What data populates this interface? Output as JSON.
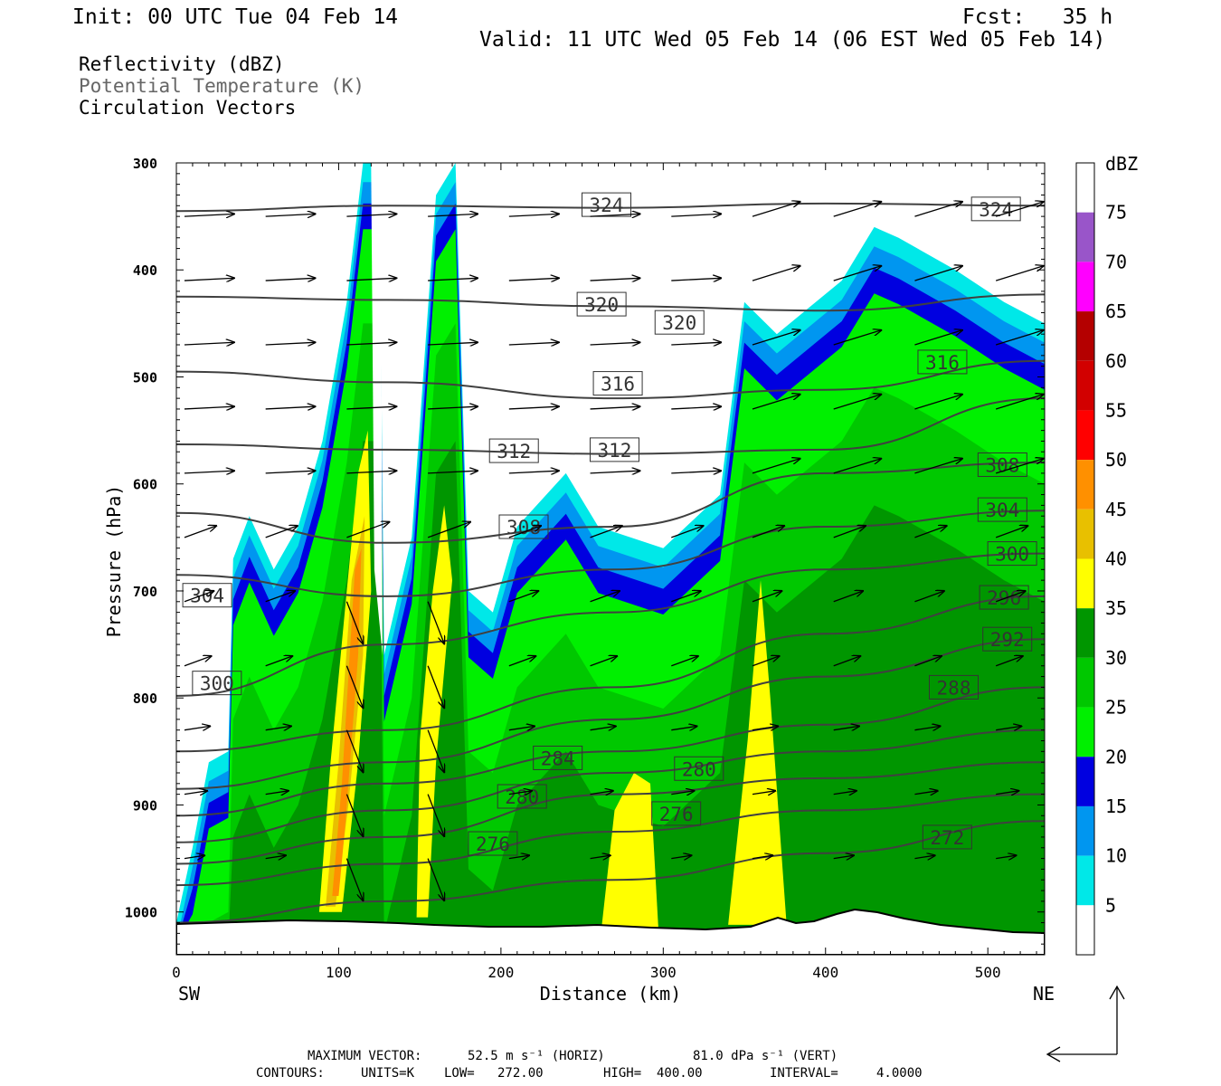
{
  "header": {
    "init": "Init: 00 UTC Tue 04 Feb 14",
    "fcst": "Fcst:   35 h",
    "valid": "Valid: 11 UTC Wed 05 Feb 14 (06 EST Wed 05 Feb 14)",
    "field1": "Reflectivity (dBZ)",
    "field2": "Potential Temperature (K)",
    "field3": "Circulation Vectors"
  },
  "footer": {
    "max_vector_label": "MAXIMUM VECTOR:",
    "horiz": "52.5 m s⁻¹ (HORIZ)",
    "vert": "81.0 dPa s⁻¹ (VERT)",
    "contours_label": "CONTOURS:",
    "units": "UNITS=K",
    "low": "LOW=   272.00",
    "high": "HIGH=  400.00",
    "interval": "INTERVAL=     4.0000"
  },
  "chart_data": {
    "type": "heatmap",
    "xlabel": "Distance (km)",
    "ylabel": "Pressure (hPa)",
    "x_end_labels": [
      "SW",
      "NE"
    ],
    "xlim": [
      0,
      535
    ],
    "ylim": [
      1040,
      300
    ],
    "xticks": [
      0,
      100,
      200,
      300,
      400,
      500
    ],
    "yticks": [
      300,
      400,
      500,
      600,
      700,
      800,
      900,
      1000
    ],
    "colorbar": {
      "title": "dBZ",
      "levels": [
        5,
        10,
        15,
        20,
        25,
        30,
        35,
        40,
        45,
        50,
        55,
        60,
        65,
        70,
        75
      ],
      "colors": [
        "#ffffff",
        "#00e8e8",
        "#0096f0",
        "#0000e0",
        "#00f000",
        "#00c800",
        "#009600",
        "#ffff00",
        "#e8c000",
        "#ff9000",
        "#ff0000",
        "#d20000",
        "#b40000",
        "#ff00ff",
        "#9955c9"
      ]
    },
    "reflectivity_profiles": [
      {
        "x": 0,
        "p": 1010
      },
      {
        "x": 10,
        "p": 940
      },
      {
        "x": 20,
        "p": 860
      },
      {
        "x": 32,
        "p": 850
      },
      {
        "x": 35,
        "p": 670
      },
      {
        "x": 45,
        "p": 630
      },
      {
        "x": 60,
        "p": 680
      },
      {
        "x": 75,
        "p": 640
      },
      {
        "x": 90,
        "p": 560
      },
      {
        "x": 105,
        "p": 430
      },
      {
        "x": 115,
        "p": 300
      },
      {
        "x": 125,
        "p": 300
      },
      {
        "x": 128,
        "p": 760
      },
      {
        "x": 145,
        "p": 650
      },
      {
        "x": 160,
        "p": 330
      },
      {
        "x": 172,
        "p": 300
      },
      {
        "x": 180,
        "p": 700
      },
      {
        "x": 195,
        "p": 720
      },
      {
        "x": 210,
        "p": 640
      },
      {
        "x": 240,
        "p": 590
      },
      {
        "x": 260,
        "p": 640
      },
      {
        "x": 300,
        "p": 660
      },
      {
        "x": 335,
        "p": 610
      },
      {
        "x": 350,
        "p": 430
      },
      {
        "x": 370,
        "p": 460
      },
      {
        "x": 410,
        "p": 410
      },
      {
        "x": 430,
        "p": 360
      },
      {
        "x": 445,
        "p": 370
      },
      {
        "x": 480,
        "p": 400
      },
      {
        "x": 510,
        "p": 430
      },
      {
        "x": 535,
        "p": 450
      }
    ],
    "theta_contours": [
      {
        "value": 324,
        "p": [
          345,
          340,
          342,
          338,
          340
        ],
        "labels": [
          [
            265,
            339
          ],
          [
            505,
            343
          ]
        ]
      },
      {
        "value": 320,
        "p": [
          425,
          428,
          434,
          438,
          423
        ],
        "labels": [
          [
            262,
            432
          ],
          [
            310,
            449
          ]
        ]
      },
      {
        "value": 316,
        "p": [
          495,
          505,
          520,
          512,
          485
        ],
        "labels": [
          [
            272,
            506
          ],
          [
            472,
            486
          ]
        ]
      },
      {
        "value": 312,
        "p": [
          563,
          568,
          572,
          568,
          520
        ],
        "labels": [
          [
            208,
            569
          ],
          [
            270,
            568
          ]
        ]
      },
      {
        "value": 308,
        "p": [
          627,
          655,
          640,
          590,
          580
        ],
        "labels": [
          [
            214,
            640
          ],
          [
            509,
            582
          ]
        ]
      },
      {
        "value": 304,
        "p": [
          685,
          705,
          680,
          640,
          625
        ],
        "labels": [
          [
            19,
            704
          ],
          [
            509,
            624
          ]
        ]
      },
      {
        "value": 300,
        "p": [
          798,
          750,
          720,
          680,
          665
        ],
        "labels": [
          [
            25,
            786
          ],
          [
            515,
            665
          ]
        ]
      },
      {
        "value": 296,
        "p": [
          850,
          830,
          790,
          740,
          705
        ],
        "labels": [
          [
            510,
            706
          ]
        ]
      },
      {
        "value": 292,
        "p": [
          885,
          860,
          820,
          780,
          745
        ],
        "labels": [
          [
            512,
            745
          ]
        ]
      },
      {
        "value": 288,
        "p": [
          910,
          880,
          850,
          825,
          790
        ],
        "labels": [
          [
            479,
            790
          ]
        ]
      },
      {
        "value": 284,
        "p": [
          935,
          905,
          870,
          850,
          830
        ],
        "labels": [
          [
            235,
            856
          ]
        ]
      },
      {
        "value": 280,
        "p": [
          955,
          930,
          890,
          875,
          860
        ],
        "labels": [
          [
            213,
            892
          ],
          [
            322,
            866
          ]
        ]
      },
      {
        "value": 276,
        "p": [
          975,
          955,
          925,
          905,
          890
        ],
        "labels": [
          [
            195,
            936
          ],
          [
            308,
            908
          ]
        ]
      },
      {
        "value": 272,
        "p": [
          1010,
          990,
          970,
          945,
          915
        ],
        "labels": [
          [
            475,
            930
          ]
        ]
      }
    ]
  }
}
